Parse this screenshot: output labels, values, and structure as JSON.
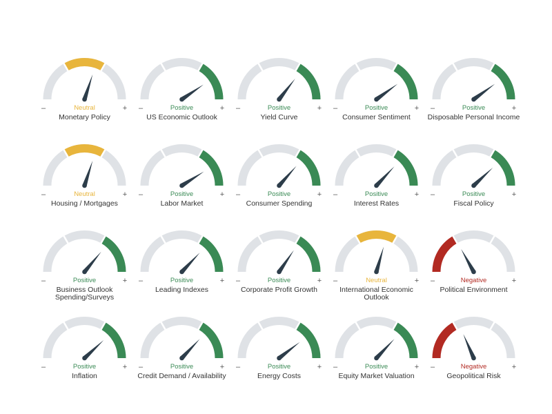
{
  "colors": {
    "track": "#dfe2e6",
    "positive": "#3a8a55",
    "neutral": "#e8b53c",
    "negative": "#b22a22",
    "needle": "#2d3d4a",
    "sign": "#555555",
    "title": "#333333"
  },
  "labels": {
    "minus": "–",
    "plus": "+"
  },
  "chart_data": {
    "type": "gauge",
    "scale_zones": [
      "negative",
      "neutral",
      "positive"
    ],
    "gauges": [
      {
        "title": "Monetary Policy",
        "status": "Neutral",
        "value": 0.6
      },
      {
        "title": "US Economic Outlook",
        "status": "Positive",
        "value": 0.81
      },
      {
        "title": "Yield Curve",
        "status": "Positive",
        "value": 0.71
      },
      {
        "title": "Consumer Sentiment",
        "status": "Positive",
        "value": 0.8
      },
      {
        "title": "Disposable Personal Income",
        "status": "Positive",
        "value": 0.8
      },
      {
        "title": "Housing / Mortgages",
        "status": "Neutral",
        "value": 0.6
      },
      {
        "title": "Labor Market",
        "status": "Positive",
        "value": 0.82
      },
      {
        "title": "Consumer Spending",
        "status": "Positive",
        "value": 0.73
      },
      {
        "title": "Interest Rates",
        "status": "Positive",
        "value": 0.74
      },
      {
        "title": "Fiscal Policy",
        "status": "Positive",
        "value": 0.76
      },
      {
        "title": "Business Outlook Spending/Surveys",
        "status": "Positive",
        "value": 0.72
      },
      {
        "title": "Leading Indexes",
        "status": "Positive",
        "value": 0.74
      },
      {
        "title": "Corporate Profit Growth",
        "status": "Positive",
        "value": 0.69
      },
      {
        "title": "International Economic Outlook",
        "status": "Neutral",
        "value": 0.59
      },
      {
        "title": "Political Environment",
        "status": "Negative",
        "value": 0.34
      },
      {
        "title": "Inflation",
        "status": "Positive",
        "value": 0.76
      },
      {
        "title": "Credit Demand / Availability",
        "status": "Positive",
        "value": 0.74
      },
      {
        "title": "Energy Costs",
        "status": "Positive",
        "value": 0.79
      },
      {
        "title": "Equity Market Valuation",
        "status": "Positive",
        "value": 0.74
      },
      {
        "title": "Geopolitical Risk",
        "status": "Negative",
        "value": 0.37
      }
    ]
  }
}
